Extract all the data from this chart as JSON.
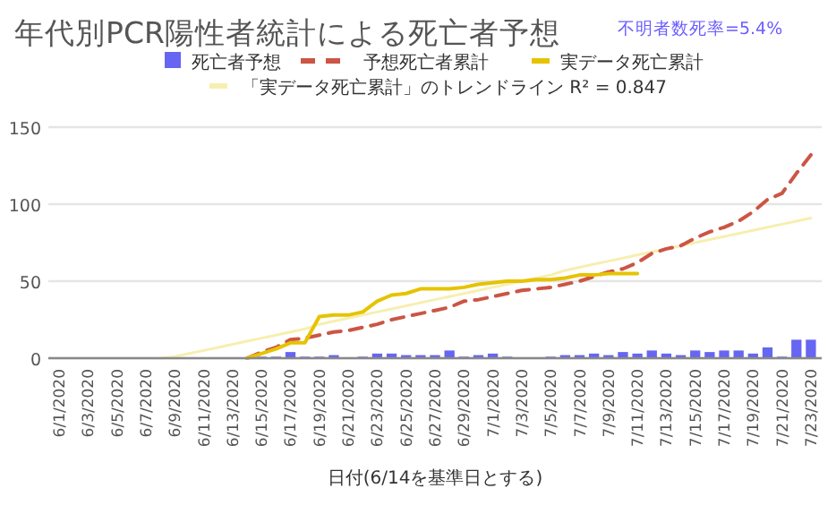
{
  "chart_data": {
    "type": "bar",
    "title": "年代別PCR陽性者統計による死亡者予想",
    "xlabel": "日付(6/14を基準日とする)",
    "annotations": [
      "不明者数死率=5.4%"
    ],
    "categories": [
      "6/1/2020",
      null,
      "6/3/2020",
      null,
      "6/5/2020",
      null,
      "6/7/2020",
      null,
      "6/9/2020",
      null,
      "6/11/2020",
      null,
      "6/13/2020",
      null,
      "6/15/2020",
      null,
      "6/17/2020",
      null,
      "6/19/2020",
      null,
      "6/21/2020",
      null,
      "6/23/2020",
      null,
      "6/25/2020",
      null,
      "6/27/2020",
      null,
      "6/29/2020",
      null,
      "7/1/2020",
      null,
      "7/3/2020",
      null,
      "7/5/2020",
      null,
      "7/7/2020",
      null,
      "7/9/2020",
      null,
      "7/11/2020",
      null,
      "7/13/2020",
      null,
      "7/15/2020",
      null,
      "7/17/2020",
      null,
      "7/19/2020",
      null,
      "7/21/2020",
      null,
      "7/23/2020"
    ],
    "series": [
      {
        "name": "死亡者予想",
        "color": "#6666f2",
        "values": [
          null,
          null,
          null,
          null,
          null,
          null,
          null,
          null,
          null,
          null,
          null,
          null,
          null,
          null,
          1,
          1,
          4,
          1,
          1,
          2,
          null,
          1,
          3,
          3,
          2,
          2,
          2,
          5,
          1,
          2,
          3,
          1,
          null,
          null,
          1,
          2,
          2,
          3,
          2,
          4,
          3,
          5,
          3,
          2,
          5,
          4,
          5,
          5,
          3,
          7,
          1,
          12,
          12
        ]
      },
      {
        "name": "予想死亡者累計",
        "type": "line",
        "line_style": "dashed",
        "color": "#cc5544",
        "values": [
          null,
          null,
          null,
          null,
          null,
          null,
          null,
          null,
          null,
          null,
          null,
          null,
          null,
          0,
          4,
          7,
          12,
          13,
          15,
          17,
          18,
          20,
          22,
          25,
          27,
          29,
          31,
          33,
          37,
          38,
          40,
          42,
          44,
          45,
          46,
          48,
          50,
          53,
          56,
          58,
          62,
          68,
          71,
          73,
          78,
          82,
          85,
          89,
          95,
          103,
          107,
          120,
          132
        ]
      },
      {
        "name": "実データ死亡累計",
        "type": "line",
        "line_style": "solid",
        "color": "#e6c300",
        "values": [
          null,
          null,
          null,
          null,
          null,
          null,
          null,
          null,
          null,
          null,
          null,
          null,
          null,
          0,
          3,
          6,
          10,
          10,
          27,
          28,
          28,
          30,
          37,
          41,
          42,
          45,
          45,
          45,
          46,
          48,
          49,
          50,
          50,
          51,
          51,
          52,
          54,
          54,
          55,
          55,
          55,
          null,
          null,
          null,
          null,
          null,
          null,
          null,
          null,
          null,
          null,
          null,
          null
        ]
      },
      {
        "name": "「実データ死亡累計」のトレンドライン R² = 0.847",
        "type": "line",
        "line_style": "solid",
        "color": "#f7efb0",
        "values": [
          null,
          null,
          null,
          null,
          null,
          null,
          null,
          0,
          1,
          3,
          5,
          7,
          9,
          11,
          13,
          15,
          17,
          19,
          22,
          24,
          26,
          28,
          30,
          32,
          34,
          36,
          38,
          40,
          42,
          44,
          46,
          48,
          50,
          52,
          54,
          57,
          59,
          61,
          63,
          65,
          67,
          69,
          71,
          73,
          75,
          77,
          79,
          81,
          83,
          85,
          87,
          89,
          91
        ]
      }
    ],
    "ylim": [
      0,
      150
    ],
    "yticks": [
      0,
      50,
      100,
      150
    ],
    "grid": "y",
    "legend": "top"
  }
}
